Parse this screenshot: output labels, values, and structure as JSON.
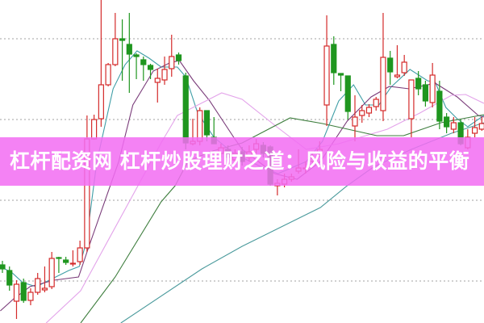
{
  "banner": {
    "title": "杠杆配资网 杠杆炒股理财之道：风险与收益的平衡",
    "color": "#f06ef0"
  },
  "chart_data": {
    "type": "candlestick",
    "ylim": [
      4.8,
      44.8
    ],
    "grid": {
      "horizontal": true,
      "style": "dotted",
      "values": [
        10,
        20,
        30,
        40
      ]
    },
    "colors": {
      "up": "#d42a2a",
      "down": "#1f961f",
      "grid": "#a0a0a0"
    },
    "candles": [
      [
        12.0,
        12.5,
        11.0,
        11.5
      ],
      [
        11.3,
        11.8,
        8.8,
        9.5
      ],
      [
        7.5,
        10.1,
        5.3,
        9.6
      ],
      [
        9.8,
        10.3,
        7.3,
        7.6
      ],
      [
        7.6,
        9.1,
        7.0,
        8.6
      ],
      [
        8.6,
        11.0,
        8.3,
        10.3
      ],
      [
        8.9,
        11.8,
        8.6,
        9.1
      ],
      [
        9.3,
        13.6,
        9.0,
        12.8
      ],
      [
        12.9,
        13.0,
        11.0,
        12.8
      ],
      [
        12.6,
        13.0,
        12.0,
        12.3
      ],
      [
        12.1,
        13.8,
        11.8,
        12.2
      ],
      [
        12.4,
        15.0,
        12.0,
        14.1
      ],
      [
        14.1,
        30.5,
        13.6,
        27.6
      ],
      [
        27.6,
        30.6,
        27.5,
        30.0
      ],
      [
        30.1,
        44.8,
        29.1,
        34.3
      ],
      [
        34.3,
        37.0,
        34.1,
        36.8
      ],
      [
        36.8,
        43.2,
        36.6,
        40.0
      ],
      [
        40.0,
        42.4,
        34.8,
        39.8
      ],
      [
        39.3,
        43.2,
        33.3,
        38.1
      ],
      [
        38.0,
        38.2,
        35.0,
        37.8
      ],
      [
        37.4,
        37.8,
        34.8,
        36.8
      ],
      [
        36.7,
        36.9,
        35.0,
        36.2
      ],
      [
        34.6,
        36.3,
        32.1,
        35.1
      ],
      [
        34.9,
        37.8,
        34.3,
        36.2
      ],
      [
        36.3,
        40.5,
        35.3,
        37.8
      ],
      [
        38.0,
        38.3,
        36.8,
        37.3
      ],
      [
        35.4,
        35.8,
        26.3,
        27.1
      ],
      [
        27.0,
        30.1,
        26.8,
        27.3
      ],
      [
        27.3,
        31.5,
        26.8,
        31.1
      ],
      [
        31.1,
        31.1,
        27.3,
        28.1
      ],
      [
        27.8,
        30.3,
        27.0,
        27.0
      ],
      [
        25.8,
        27.0,
        25.3,
        26.5
      ],
      [
        26.3,
        26.8,
        24.8,
        25.3
      ],
      [
        25.0,
        26.3,
        24.5,
        25.8
      ],
      [
        26.0,
        26.6,
        24.3,
        24.8
      ],
      [
        25.3,
        26.8,
        24.8,
        26.0
      ],
      [
        26.3,
        27.6,
        25.8,
        27.0
      ],
      [
        26.8,
        27.2,
        25.3,
        25.8
      ],
      [
        26.6,
        26.8,
        21.8,
        22.0
      ],
      [
        21.8,
        22.6,
        20.6,
        22.1
      ],
      [
        22.0,
        23.3,
        21.6,
        22.6
      ],
      [
        22.6,
        23.3,
        22.3,
        22.9
      ],
      [
        23.6,
        26.3,
        23.3,
        24.0
      ],
      [
        23.9,
        24.8,
        23.3,
        24.0
      ],
      [
        24.8,
        25.8,
        24.3,
        25.2
      ],
      [
        25.8,
        27.3,
        25.3,
        26.3
      ],
      [
        31.8,
        42.9,
        29.2,
        39.1
      ],
      [
        39.3,
        40.3,
        34.3,
        35.8
      ],
      [
        35.7,
        35.7,
        33.5,
        35.5
      ],
      [
        35.4,
        35.4,
        30.0,
        31.0
      ],
      [
        29.2,
        33.0,
        27.3,
        30.3
      ],
      [
        30.5,
        31.8,
        29.6,
        31.1
      ],
      [
        30.8,
        31.9,
        30.3,
        31.5
      ],
      [
        31.6,
        32.8,
        31.1,
        32.5
      ],
      [
        31.1,
        43.2,
        29.8,
        37.7
      ],
      [
        37.6,
        38.5,
        34.3,
        35.9
      ],
      [
        35.3,
        39.2,
        35.1,
        35.5
      ],
      [
        35.8,
        38.0,
        35.4,
        37.1
      ],
      [
        30.1,
        34.9,
        27.8,
        34.9
      ],
      [
        35.1,
        36.0,
        33.0,
        33.8
      ],
      [
        34.3,
        34.8,
        31.6,
        32.3
      ],
      [
        32.1,
        37.0,
        31.5,
        35.5
      ],
      [
        33.5,
        34.8,
        28.8,
        29.8
      ],
      [
        30.3,
        30.8,
        28.3,
        29.1
      ],
      [
        28.8,
        30.3,
        28.3,
        29.6
      ],
      [
        29.6,
        30.0,
        26.8,
        27.0
      ],
      [
        26.5,
        28.8,
        26.3,
        27.8
      ],
      [
        28.3,
        30.3,
        27.8,
        29.0
      ],
      [
        28.8,
        30.3,
        28.6,
        29.5
      ]
    ],
    "candle_fields": [
      "open",
      "high",
      "low",
      "close"
    ],
    "moving_averages": [
      {
        "color": "#3f9ea6",
        "points": [
          [
            -0.3,
            11.8
          ],
          [
            1.4,
            11.0
          ],
          [
            2.9,
            9.8
          ],
          [
            4.8,
            9.3
          ],
          [
            7.1,
            10.3
          ],
          [
            9.4,
            11.3
          ],
          [
            10.9,
            11.8
          ],
          [
            11.9,
            14.8
          ],
          [
            13.4,
            24.8
          ],
          [
            15.7,
            33.8
          ],
          [
            17.4,
            36.8
          ],
          [
            19.1,
            38.5
          ],
          [
            20.8,
            37.6
          ],
          [
            22.5,
            36.5
          ],
          [
            24.8,
            36.5
          ],
          [
            26.0,
            35.3
          ],
          [
            27.7,
            30.8
          ],
          [
            30.0,
            27.8
          ],
          [
            32.8,
            25.8
          ],
          [
            36.3,
            24.3
          ],
          [
            39.1,
            23.3
          ],
          [
            43.1,
            24.8
          ],
          [
            45.4,
            27.3
          ],
          [
            47.7,
            32.3
          ],
          [
            49.8,
            34.3
          ],
          [
            51.5,
            31.8
          ],
          [
            53.4,
            31.8
          ],
          [
            55.1,
            34.0
          ],
          [
            57.8,
            36.2
          ],
          [
            60.3,
            34.8
          ],
          [
            61.4,
            34.6
          ],
          [
            62.9,
            31.5
          ],
          [
            64.5,
            30.1
          ],
          [
            66.0,
            29.1
          ],
          [
            68.3,
            30.5
          ]
        ]
      },
      {
        "color": "#7a3c7a",
        "points": [
          [
            -0.3,
            6.3
          ],
          [
            1.6,
            7.8
          ],
          [
            3.9,
            9.3
          ],
          [
            7.3,
            10.1
          ],
          [
            10.8,
            10.5
          ],
          [
            12.2,
            14.1
          ],
          [
            16.5,
            24.8
          ],
          [
            18.5,
            31.8
          ],
          [
            21.4,
            36.0
          ],
          [
            23.7,
            37.0
          ],
          [
            25.1,
            37.3
          ],
          [
            27.1,
            34.8
          ],
          [
            29.4,
            32.3
          ],
          [
            32.8,
            27.8
          ],
          [
            34.0,
            26.3
          ],
          [
            38.6,
            23.3
          ],
          [
            41.8,
            22.6
          ],
          [
            45.1,
            24.8
          ],
          [
            48.9,
            29.8
          ],
          [
            52.3,
            32.8
          ],
          [
            54.9,
            34.1
          ],
          [
            57.7,
            33.8
          ],
          [
            61.4,
            34.5
          ],
          [
            64.5,
            32.8
          ],
          [
            67.5,
            30.5
          ],
          [
            68.3,
            30.3
          ]
        ]
      },
      {
        "color": "#e3a3ea",
        "points": [
          [
            6.2,
            4.8
          ],
          [
            11.1,
            8.8
          ],
          [
            21.1,
            24.8
          ],
          [
            22.5,
            27.1
          ],
          [
            24.8,
            30.5
          ],
          [
            31.1,
            33.3
          ],
          [
            34.0,
            32.5
          ],
          [
            38.9,
            29.1
          ],
          [
            43.1,
            26.3
          ],
          [
            47.7,
            27.0
          ],
          [
            54.6,
            28.8
          ],
          [
            59.2,
            30.8
          ],
          [
            63.7,
            33.0
          ],
          [
            65.7,
            33.1
          ],
          [
            68.3,
            32.0
          ]
        ]
      },
      {
        "color": "#3d7d3d",
        "points": [
          [
            11.1,
            4.8
          ],
          [
            16.0,
            10.5
          ],
          [
            22.5,
            19.8
          ],
          [
            24.5,
            21.8
          ],
          [
            26.3,
            24.8
          ],
          [
            29.4,
            26.0
          ],
          [
            34.0,
            27.1
          ],
          [
            40.8,
            30.2
          ],
          [
            45.4,
            29.5
          ],
          [
            53.1,
            28.0
          ],
          [
            56.9,
            28.0
          ],
          [
            62.2,
            29.6
          ],
          [
            68.3,
            30.6
          ]
        ]
      },
      {
        "color": "#4a9a9c",
        "points": [
          [
            16.8,
            4.8
          ],
          [
            28.3,
            11.5
          ],
          [
            34.0,
            14.3
          ],
          [
            45.1,
            19.1
          ],
          [
            48.9,
            21.8
          ],
          [
            52.6,
            24.1
          ],
          [
            58.0,
            26.3
          ],
          [
            63.7,
            28.3
          ],
          [
            68.3,
            29.6
          ]
        ]
      }
    ]
  }
}
